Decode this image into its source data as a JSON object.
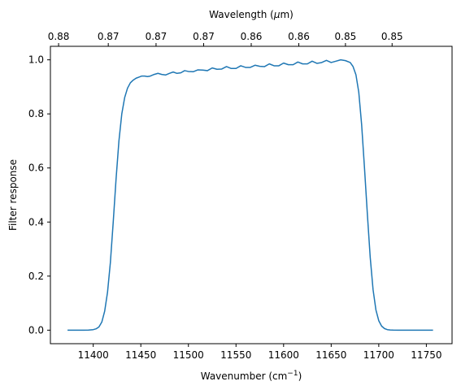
{
  "chart_data": {
    "type": "line",
    "xlabel": "Wavenumber (cm",
    "xlabel_sup": "−1",
    "xlabel_suffix": ")",
    "ylabel": "Filter response",
    "top_xlabel_prefix": "Wavelength (",
    "top_xlabel_mu": "μ",
    "top_xlabel_suffix": "m)",
    "xlim": [
      11355,
      11777
    ],
    "ylim": [
      -0.05,
      1.05
    ],
    "x_ticks": [
      11400,
      11450,
      11500,
      11550,
      11600,
      11650,
      11700,
      11750
    ],
    "x_tick_labels": [
      "11400",
      "11450",
      "11500",
      "11550",
      "11600",
      "11650",
      "11700",
      "11750"
    ],
    "y_ticks": [
      0.0,
      0.2,
      0.4,
      0.6,
      0.8,
      1.0
    ],
    "y_tick_labels": [
      "0.0",
      "0.2",
      "0.4",
      "0.6",
      "0.8",
      "1.0"
    ],
    "top_ticks": [
      11363.6,
      11415.8,
      11466.0,
      11516.0,
      11566.0,
      11616.0,
      11665.0,
      11714.0
    ],
    "top_tick_labels": [
      "0.88",
      "0.87",
      "0.87",
      "0.87",
      "0.86",
      "0.86",
      "0.85",
      "0.85"
    ],
    "grid": false,
    "series": [
      {
        "color": "#1f77b4",
        "x": [
          11373,
          11390,
          11395,
          11400,
          11403,
          11406,
          11409,
          11412,
          11415,
          11418,
          11421,
          11424,
          11427,
          11430,
          11433,
          11436,
          11439,
          11442,
          11445,
          11448,
          11451,
          11454,
          11457,
          11460,
          11464,
          11468,
          11472,
          11476,
          11480,
          11484,
          11488,
          11492,
          11496,
          11500,
          11505,
          11510,
          11515,
          11520,
          11525,
          11530,
          11535,
          11540,
          11545,
          11550,
          11555,
          11560,
          11565,
          11570,
          11575,
          11580,
          11585,
          11590,
          11595,
          11600,
          11605,
          11610,
          11615,
          11620,
          11625,
          11630,
          11635,
          11640,
          11645,
          11650,
          11655,
          11660,
          11665,
          11670,
          11673,
          11676,
          11679,
          11682,
          11685,
          11688,
          11691,
          11694,
          11697,
          11700,
          11703,
          11706,
          11709,
          11712,
          11715,
          11720,
          11730,
          11757
        ],
        "y": [
          0.0,
          0.0,
          0.0005,
          0.002,
          0.005,
          0.012,
          0.03,
          0.07,
          0.14,
          0.25,
          0.4,
          0.56,
          0.7,
          0.8,
          0.86,
          0.895,
          0.915,
          0.925,
          0.932,
          0.936,
          0.94,
          0.94,
          0.938,
          0.94,
          0.946,
          0.95,
          0.946,
          0.944,
          0.95,
          0.955,
          0.95,
          0.952,
          0.96,
          0.957,
          0.956,
          0.963,
          0.962,
          0.96,
          0.97,
          0.965,
          0.966,
          0.975,
          0.968,
          0.968,
          0.978,
          0.972,
          0.972,
          0.98,
          0.976,
          0.975,
          0.985,
          0.978,
          0.978,
          0.988,
          0.982,
          0.982,
          0.992,
          0.985,
          0.985,
          0.995,
          0.987,
          0.99,
          0.998,
          0.99,
          0.995,
          1.0,
          0.997,
          0.99,
          0.975,
          0.945,
          0.88,
          0.76,
          0.6,
          0.43,
          0.27,
          0.15,
          0.075,
          0.035,
          0.015,
          0.006,
          0.002,
          0.0008,
          0.0003,
          0.0,
          0.0,
          0.0
        ]
      }
    ]
  }
}
